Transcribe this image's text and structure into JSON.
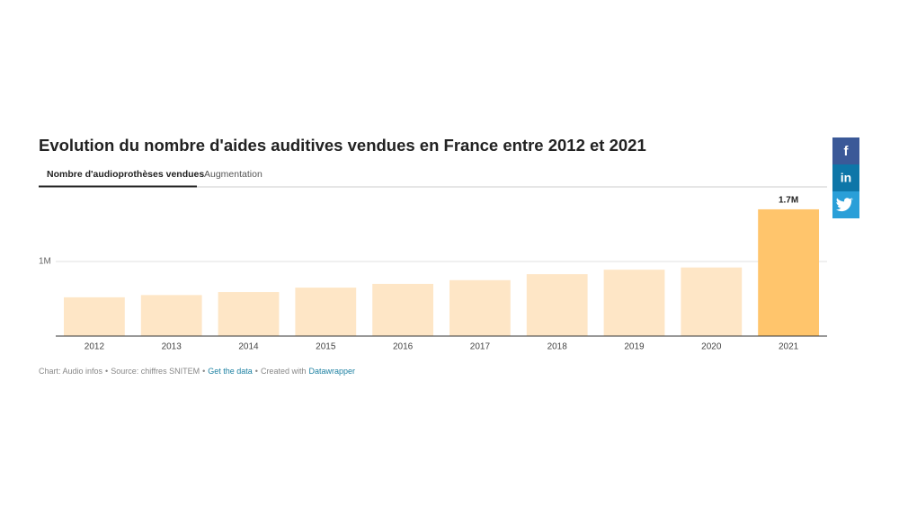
{
  "chart_data": {
    "type": "bar",
    "title": "Evolution du nombre d'aides auditives vendues en France entre 2012 et 2021",
    "tabs": [
      "Nombre d'audioprothèses vendues",
      "Augmentation"
    ],
    "categories": [
      "2012",
      "2013",
      "2014",
      "2015",
      "2016",
      "2017",
      "2018",
      "2019",
      "2020",
      "2021"
    ],
    "values": [
      520000,
      550000,
      590000,
      650000,
      700000,
      750000,
      830000,
      890000,
      920000,
      1700000
    ],
    "value_labels": [
      null,
      null,
      null,
      null,
      null,
      null,
      null,
      null,
      null,
      "1.7M"
    ],
    "colors": [
      "#fee6c6",
      "#fee6c6",
      "#fee6c6",
      "#fee6c6",
      "#fee6c6",
      "#fee6c6",
      "#fee6c6",
      "#fee6c6",
      "#fee6c6",
      "#ffc56c"
    ],
    "ylim": [
      0,
      1880000
    ],
    "yticks": [
      {
        "value": 1000000,
        "label": "1M"
      }
    ],
    "grid": true,
    "footer": [
      "Chart: Audio infos",
      "•",
      "Source: chiffres SNITEM",
      "•",
      "Get the data",
      "•",
      "Created with",
      "Datawrapper"
    ],
    "share_buttons": [
      "f",
      "in"
    ]
  }
}
